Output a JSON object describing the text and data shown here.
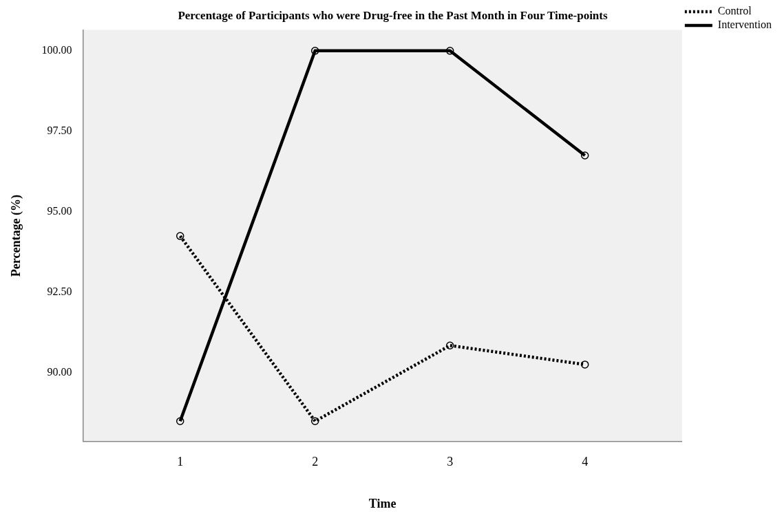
{
  "chart_data": {
    "type": "line",
    "title": "Percentage of Participants who were Drug-free in the Past Month in Four Time-points",
    "xlabel": "Time",
    "ylabel": "Percentage (%)",
    "x": [
      1,
      2,
      3,
      4
    ],
    "xlim": [
      0.28,
      4.72
    ],
    "xticks": [
      1,
      2,
      3,
      4
    ],
    "ylim": [
      87.87,
      100.65
    ],
    "yticks": [
      {
        "value": 90,
        "label": "90.00"
      },
      {
        "value": 92.5,
        "label": "92.50"
      },
      {
        "value": 95,
        "label": "95.00"
      },
      {
        "value": 97.5,
        "label": "97.50"
      },
      {
        "value": 100,
        "label": "100.00"
      }
    ],
    "series": [
      {
        "name": "Control",
        "color": "#000000",
        "line_style": "dotted",
        "values": [
          94.25,
          88.5,
          90.85,
          90.26
        ]
      },
      {
        "name": "Intervention",
        "color": "#000000",
        "line_style": "solid",
        "values": [
          88.5,
          100,
          100,
          96.75
        ]
      }
    ],
    "marker": "circle",
    "grid": false,
    "legend": "right"
  }
}
